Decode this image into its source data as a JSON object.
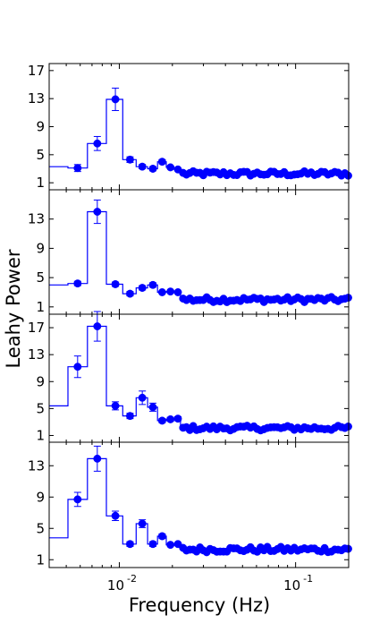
{
  "colors": {
    "series": "#0000ff",
    "axis": "#000000",
    "background": "#ffffff"
  },
  "chart_data": {
    "type": "line",
    "xlabel": "Frequency (Hz)",
    "ylabel": "Leahy Power",
    "x_scale": "log",
    "xlim": [
      0.004,
      0.2
    ],
    "x_tick_labels": [
      {
        "value": 0.01,
        "base": "10",
        "exp": "-2"
      },
      {
        "value": 0.1,
        "base": "10",
        "exp": "-1"
      }
    ],
    "grid": false,
    "legend": "none",
    "panels": [
      {
        "ylim": [
          0,
          18
        ],
        "yticks": [
          1,
          5,
          9,
          13,
          17
        ],
        "yticklabels": [
          "1",
          "5",
          "9",
          "13",
          "17"
        ],
        "bins": [
          0.004,
          0.005,
          0.006,
          0.007,
          0.008,
          0.009,
          0.01,
          0.011,
          0.012
        ],
        "x": [
          0.0045,
          0.0058,
          0.0075,
          0.0095,
          0.0115,
          0.0135,
          0.0155,
          0.0175,
          0.0195,
          0.0215
        ],
        "y": [
          3.3,
          3.1,
          6.6,
          12.9,
          4.3,
          3.3,
          3.0,
          4.0,
          3.2,
          2.9
        ],
        "err": [
          0,
          0.5,
          1.0,
          1.6,
          0.4,
          0.3,
          0.3,
          0.3,
          0.2,
          0.2
        ],
        "tail_start": 0.023,
        "tail_level": 2.3,
        "tail_jitter": 0.35
      },
      {
        "ylim": [
          0,
          17
        ],
        "yticks": [
          1,
          5,
          9,
          13
        ],
        "yticklabels": [
          "1",
          "5",
          "9",
          "13"
        ],
        "x": [
          0.0045,
          0.0058,
          0.0075,
          0.0095,
          0.0115,
          0.0135,
          0.0155,
          0.0175,
          0.0195,
          0.0215
        ],
        "y": [
          4.0,
          4.2,
          14.0,
          4.1,
          2.8,
          3.6,
          4.0,
          3.0,
          3.1,
          3.0
        ],
        "err": [
          0,
          0.3,
          1.6,
          0.3,
          0.3,
          0.3,
          0.3,
          0.2,
          0.2,
          0.2
        ],
        "tail_start": 0.023,
        "tail_level": 2.0,
        "tail_jitter": 0.35
      },
      {
        "ylim": [
          0,
          19
        ],
        "yticks": [
          1,
          5,
          9,
          13,
          17
        ],
        "yticklabels": [
          "1",
          "5",
          "9",
          "13",
          "17"
        ],
        "x": [
          0.0045,
          0.0058,
          0.0075,
          0.0095,
          0.0115,
          0.0135,
          0.0155,
          0.0175,
          0.0195,
          0.0215
        ],
        "y": [
          5.4,
          11.2,
          17.2,
          5.4,
          3.9,
          6.6,
          5.2,
          3.2,
          3.4,
          3.5
        ],
        "err": [
          0,
          1.6,
          2.2,
          0.6,
          0.4,
          1.0,
          0.6,
          0.3,
          0.3,
          0.3
        ],
        "tail_start": 0.023,
        "tail_level": 2.1,
        "tail_jitter": 0.35
      },
      {
        "ylim": [
          0,
          16
        ],
        "yticks": [
          1,
          5,
          9,
          13
        ],
        "yticklabels": [
          "1",
          "5",
          "9",
          "13"
        ],
        "x": [
          0.0045,
          0.0058,
          0.0075,
          0.0095,
          0.0115,
          0.0135,
          0.0155,
          0.0175,
          0.0195,
          0.0215
        ],
        "y": [
          3.8,
          8.7,
          13.9,
          6.6,
          3.0,
          5.6,
          3.0,
          4.0,
          2.9,
          3.0
        ],
        "err": [
          0,
          0.9,
          1.6,
          0.6,
          0.3,
          0.5,
          0.3,
          0.3,
          0.2,
          0.2
        ],
        "tail_start": 0.023,
        "tail_level": 2.3,
        "tail_jitter": 0.35
      }
    ]
  }
}
